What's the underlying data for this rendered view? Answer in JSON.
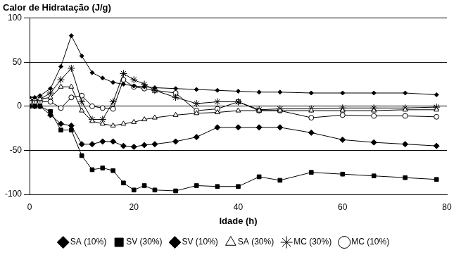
{
  "chart_data": {
    "type": "line",
    "title": "Calor de Hidratação (J/g)",
    "x_label": "Idade (h)",
    "x": [
      0,
      1,
      2,
      4,
      6,
      8,
      10,
      12,
      14,
      16,
      18,
      20,
      22,
      24,
      28,
      32,
      36,
      40,
      44,
      48,
      54,
      60,
      66,
      72,
      78
    ],
    "xlim": [
      0,
      80
    ],
    "xticks": [
      0,
      20,
      40,
      60,
      80
    ],
    "ylim": [
      -100,
      100
    ],
    "yticks": [
      -100,
      -50,
      0,
      50,
      100
    ],
    "grid": "y",
    "legend": "bottom",
    "series": [
      {
        "name": "SA (10%)",
        "color": "#000000",
        "marker": "diamond-small",
        "values": [
          10,
          10,
          12,
          20,
          45,
          80,
          57,
          38,
          32,
          27,
          25,
          23,
          22,
          21,
          20,
          19,
          18,
          17,
          16,
          16,
          15,
          15,
          15,
          15,
          13
        ]
      },
      {
        "name": "SV (30%)",
        "color": "#000000",
        "marker": "square",
        "values": [
          0,
          0,
          0,
          -6,
          -27,
          -27,
          -56,
          -72,
          -70,
          -73,
          -87,
          -95,
          -90,
          -95,
          -96,
          -90,
          -91,
          -91,
          -80,
          -84,
          -75,
          -77,
          -79,
          -81,
          -83
        ]
      },
      {
        "name": "SV (10%)",
        "color": "#000000",
        "marker": "diamond",
        "values": [
          0,
          0,
          0,
          -10,
          -20,
          -22,
          -43,
          -43,
          -40,
          -40,
          -45,
          -46,
          -44,
          -43,
          -40,
          -35,
          -24,
          -24,
          -24,
          -24,
          -30,
          -38,
          -41,
          -43,
          -45
        ]
      },
      {
        "name": "SA (30%)",
        "color": "#000000",
        "marker": "triangle-open",
        "values": [
          8,
          8,
          8,
          10,
          22,
          22,
          -5,
          -17,
          -20,
          -22,
          -20,
          -18,
          -15,
          -13,
          -10,
          -8,
          -7,
          -5,
          -5,
          -5,
          -5,
          -5,
          -5,
          -4,
          -4
        ]
      },
      {
        "name": "MC (30%)",
        "color": "#000000",
        "marker": "star",
        "values": [
          8,
          8,
          8,
          15,
          30,
          43,
          5,
          -15,
          -15,
          5,
          37,
          30,
          25,
          18,
          10,
          3,
          5,
          5,
          -4,
          -3,
          -3,
          -2,
          -2,
          -2,
          -1
        ]
      },
      {
        "name": "MC (10%)",
        "color": "#000000",
        "marker": "circle-open",
        "values": [
          5,
          5,
          5,
          5,
          -2,
          10,
          12,
          0,
          -2,
          -3,
          30,
          22,
          20,
          18,
          15,
          -5,
          -3,
          5,
          -5,
          -5,
          -13,
          -10,
          -11,
          -11,
          -12
        ]
      }
    ]
  }
}
